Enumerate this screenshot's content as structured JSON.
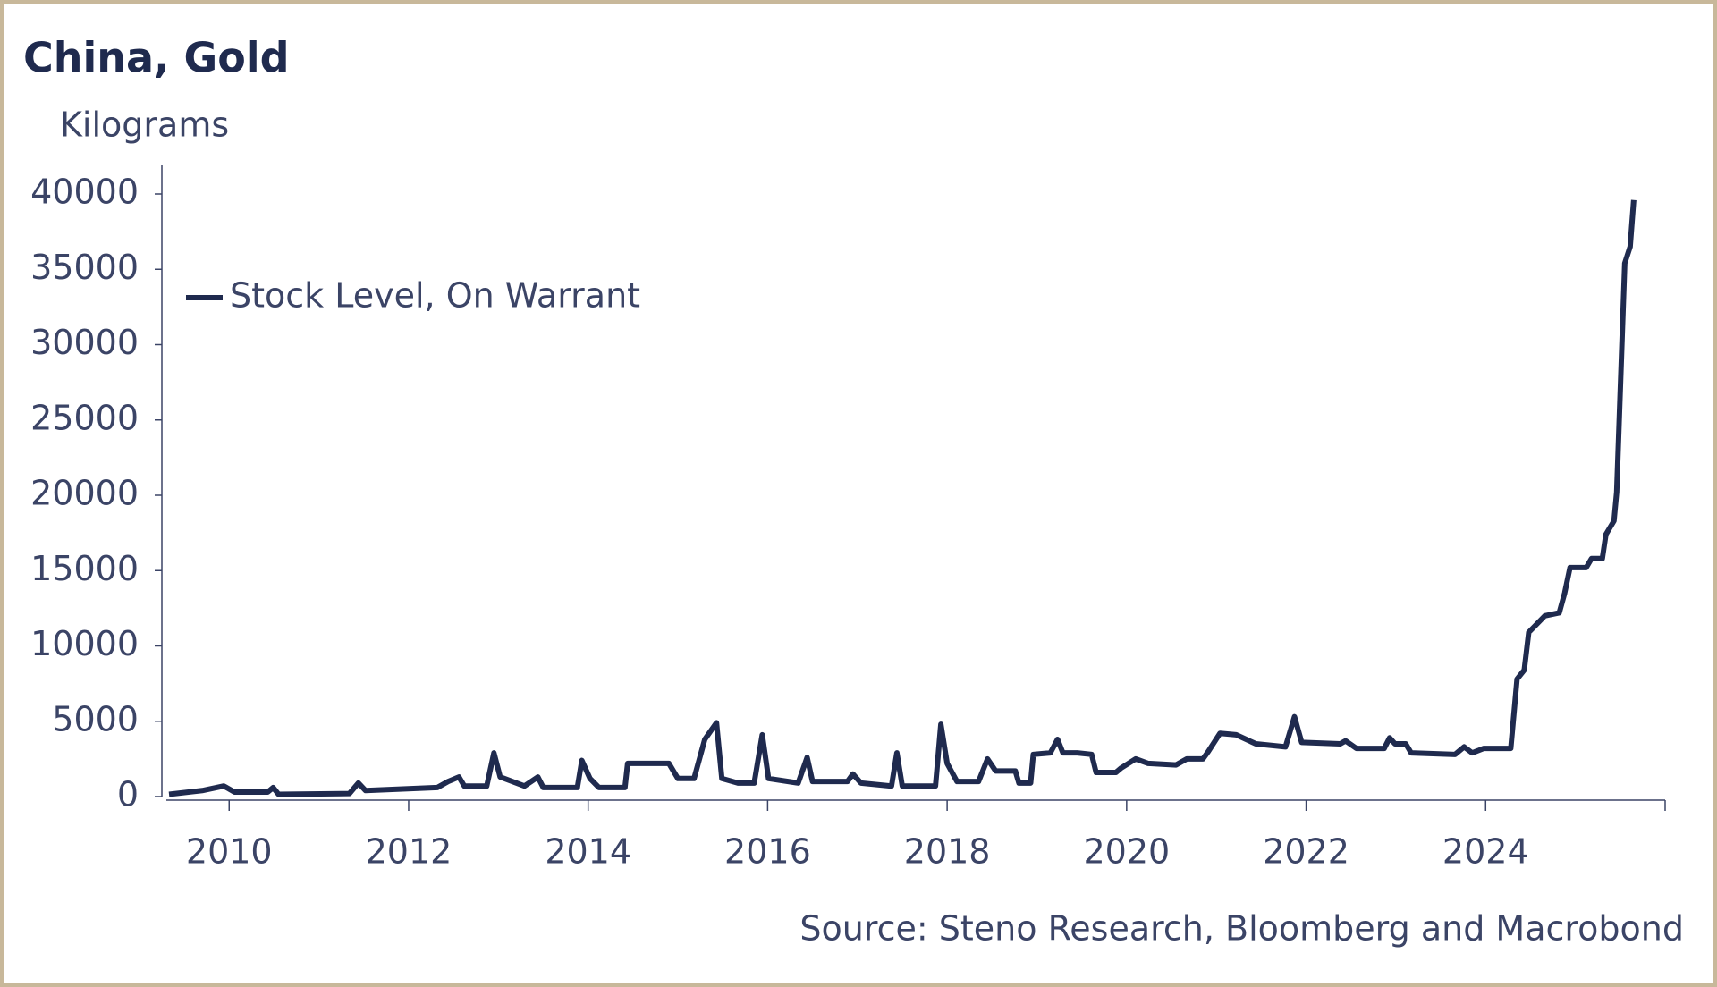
{
  "chart_data": {
    "type": "line",
    "title": "China, Gold",
    "y_label": "Kilograms",
    "source": "Source: Steno Research, Bloomberg and Macrobond",
    "x": [
      2009.33,
      2009.7,
      2009.94,
      2010.06,
      2010.43,
      2010.49,
      2010.55,
      2011.34,
      2011.44,
      2011.52,
      2012.32,
      2012.44,
      2012.56,
      2012.62,
      2012.87,
      2012.95,
      2013.02,
      2013.29,
      2013.44,
      2013.5,
      2013.88,
      2013.93,
      2014.02,
      2014.12,
      2014.41,
      2014.44,
      2014.9,
      2015.0,
      2015.18,
      2015.3,
      2015.43,
      2015.49,
      2015.67,
      2015.85,
      2015.94,
      2016.01,
      2016.34,
      2016.44,
      2016.5,
      2016.89,
      2016.95,
      2017.04,
      2017.38,
      2017.44,
      2017.5,
      2017.87,
      2017.93,
      2018.0,
      2018.11,
      2018.35,
      2018.45,
      2018.54,
      2018.76,
      2018.8,
      2018.93,
      2018.96,
      2019.15,
      2019.23,
      2019.29,
      2019.45,
      2019.61,
      2019.66,
      2019.88,
      2019.94,
      2020.1,
      2020.24,
      2020.55,
      2020.67,
      2020.85,
      2020.91,
      2021.04,
      2021.22,
      2021.44,
      2021.77,
      2021.87,
      2021.95,
      2022.38,
      2022.44,
      2022.56,
      2022.87,
      2022.93,
      2022.99,
      2023.11,
      2023.17,
      2023.66,
      2023.76,
      2023.85,
      2023.98,
      2024.28,
      2024.35,
      2024.43,
      2024.48,
      2024.66,
      2024.82,
      2024.88,
      2024.94,
      2025.12,
      2025.18,
      2025.3,
      2025.34,
      2025.43,
      2025.46,
      2025.55,
      2025.61,
      2025.65
    ],
    "series": [
      {
        "name": "Stock Level, On Warrant",
        "color": "#1f2a4e",
        "values": [
          150,
          400,
          700,
          300,
          300,
          600,
          150,
          200,
          900,
          400,
          600,
          1000,
          1300,
          700,
          700,
          2900,
          1300,
          700,
          1300,
          600,
          600,
          2400,
          1200,
          600,
          600,
          2200,
          2200,
          1200,
          1200,
          3800,
          4900,
          1200,
          900,
          900,
          4100,
          1200,
          900,
          2600,
          1000,
          1000,
          1500,
          900,
          700,
          2900,
          700,
          700,
          4800,
          2200,
          1000,
          1000,
          2500,
          1700,
          1700,
          900,
          900,
          2800,
          2900,
          3800,
          2900,
          2900,
          2800,
          1600,
          1600,
          1900,
          2500,
          2200,
          2100,
          2500,
          2500,
          3000,
          4200,
          4100,
          3500,
          3300,
          5300,
          3600,
          3500,
          3700,
          3200,
          3200,
          3900,
          3500,
          3500,
          2900,
          2800,
          3300,
          2900,
          3200,
          3200,
          7800,
          8400,
          10900,
          12000,
          12200,
          13500,
          15200,
          15200,
          15800,
          15800,
          17400,
          18300,
          20200,
          35400,
          36500,
          39600
        ]
      }
    ],
    "xlim": [
      2009.3,
      2026
    ],
    "xticks": [
      2010,
      2012,
      2014,
      2016,
      2018,
      2020,
      2022,
      2024
    ],
    "ylim": [
      0,
      40000
    ],
    "yticks": [
      0,
      5000,
      10000,
      15000,
      20000,
      25000,
      30000,
      35000,
      40000
    ],
    "legend": "upper-left"
  }
}
